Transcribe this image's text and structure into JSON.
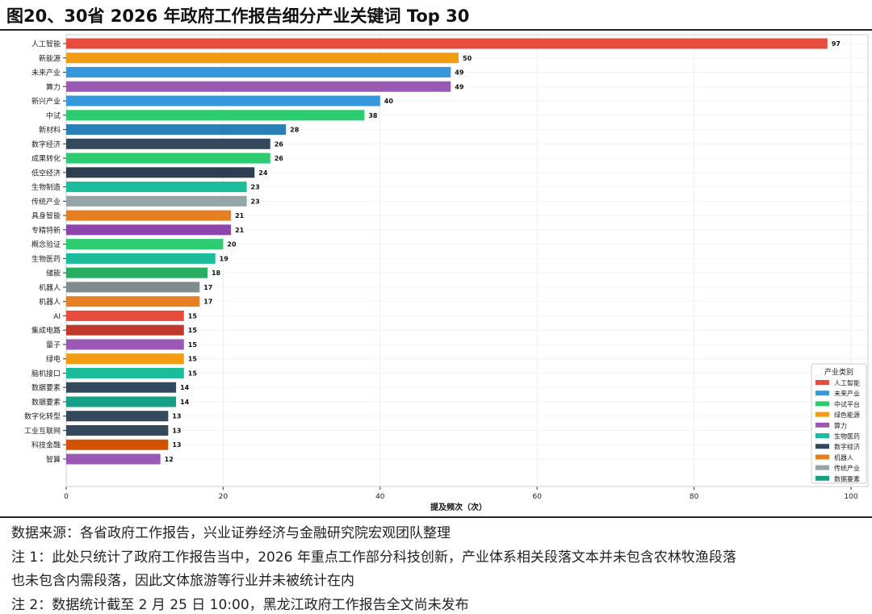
{
  "title": "图20、30省 2026 年政府工作报告细分产业关键词 Top 30",
  "notes": [
    "数据来源：各省政府工作报告，兴业证券经济与金融研究院宏观团队整理",
    "注 1：此处只统计了政府工作报告当中，2026 年重点工作部分科技创新，产业体系相关段落文本并未包含农林牧渔段落",
    "也未包含内需段落，因此文体旅游等行业并未被统计在内",
    "注 2：数据统计截至 2 月 25 日 10:00，黑龙江政府工作报告全文尚未发布"
  ],
  "chart_data": {
    "type": "bar",
    "orientation": "horizontal",
    "xlabel": "提及频次（次）",
    "xlim": [
      0,
      100
    ],
    "xticks": [
      0,
      20,
      40,
      60,
      80,
      100
    ],
    "grid": true,
    "categories": [
      "人工智能",
      "新能源",
      "未来产业",
      "算力",
      "新兴产业",
      "中试",
      "新材料",
      "数字经济",
      "成果转化",
      "低空经济",
      "生物制造",
      "传统产业",
      "具身智能",
      "专精特新",
      "概念验证",
      "生物医药",
      "储能",
      "机器人",
      "机器人",
      "AI",
      "集成电路",
      "量子",
      "绿电",
      "脑机接口",
      "数据要素",
      "数据要素",
      "数字化转型",
      "工业互联网",
      "科技金融",
      "智算"
    ],
    "values": [
      97,
      50,
      49,
      49,
      40,
      38,
      28,
      26,
      26,
      24,
      23,
      23,
      21,
      21,
      20,
      19,
      18,
      17,
      17,
      15,
      15,
      15,
      15,
      15,
      14,
      14,
      13,
      13,
      13,
      12
    ],
    "colors": [
      "#e74c3c",
      "#f39c12",
      "#3498db",
      "#9b59b6",
      "#3498db",
      "#2ecc71",
      "#2980b9",
      "#34495e",
      "#2ecc71",
      "#2c3e50",
      "#1abc9c",
      "#95a5a6",
      "#e67e22",
      "#8e44ad",
      "#2ecc71",
      "#1abc9c",
      "#27ae60",
      "#7f8c8d",
      "#e67e22",
      "#e74c3c",
      "#c0392b",
      "#9b59b6",
      "#f39c12",
      "#1abc9c",
      "#34495e",
      "#16a085",
      "#34495e",
      "#34495e",
      "#d35400",
      "#9b59b6"
    ],
    "legend": {
      "title": "产业类别",
      "position": "bottom-right",
      "items": [
        {
          "label": "人工智能",
          "color": "#e74c3c"
        },
        {
          "label": "未来产业",
          "color": "#3498db"
        },
        {
          "label": "中试平台",
          "color": "#2ecc71"
        },
        {
          "label": "绿色能源",
          "color": "#f39c12"
        },
        {
          "label": "算力",
          "color": "#9b59b6"
        },
        {
          "label": "生物医药",
          "color": "#1abc9c"
        },
        {
          "label": "数字经济",
          "color": "#34495e"
        },
        {
          "label": "机器人",
          "color": "#e67e22"
        },
        {
          "label": "传统产业",
          "color": "#95a5a6"
        },
        {
          "label": "数据要素",
          "color": "#16a085"
        }
      ]
    }
  }
}
